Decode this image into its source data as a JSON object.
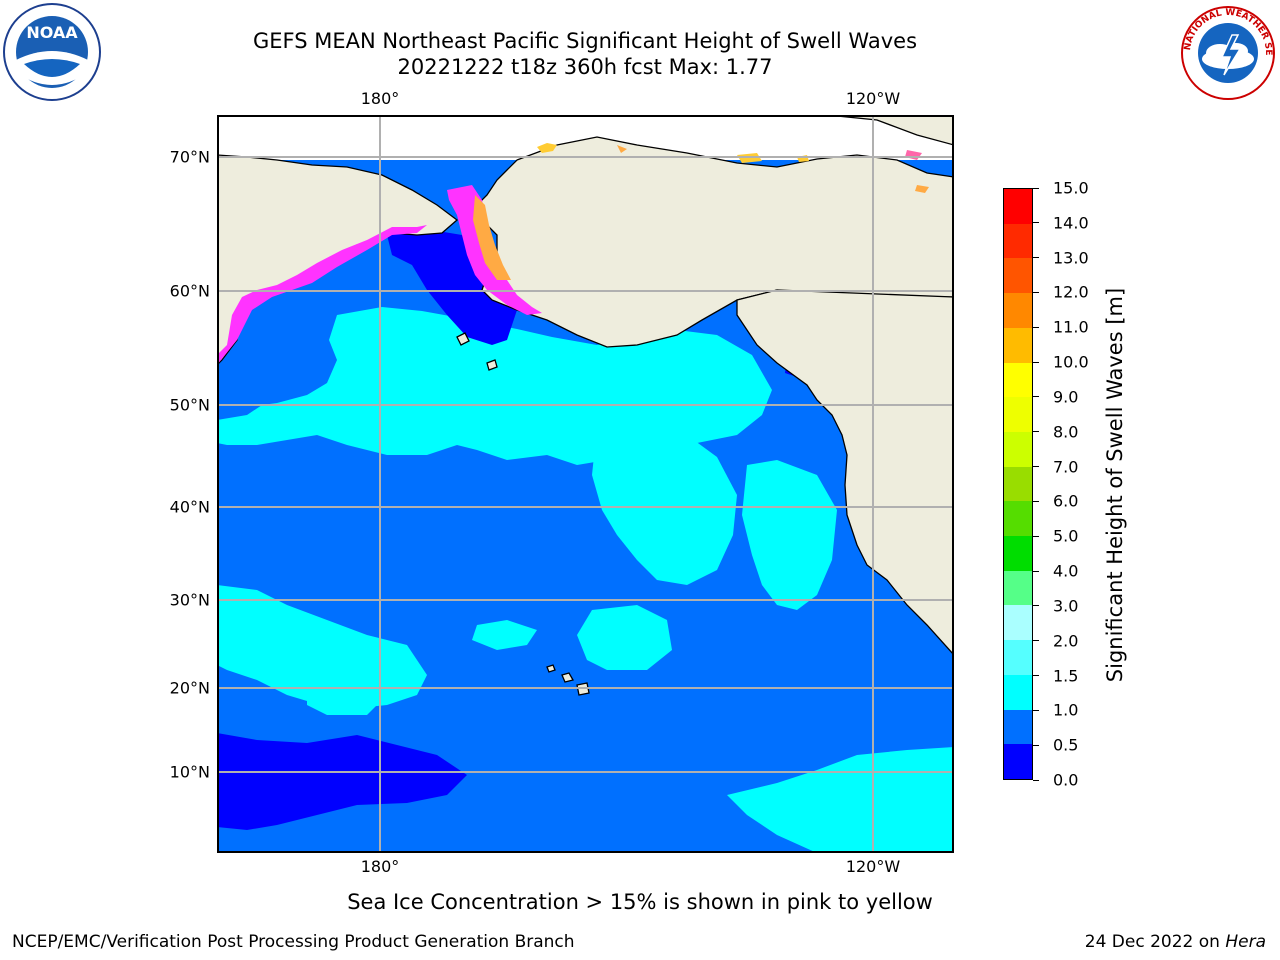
{
  "header": {
    "title_line1": "GEFS MEAN Northeast Pacific Significant Height of Swell Waves",
    "title_line2": "20221222 t18z 360h fcst   Max: 1.77"
  },
  "map": {
    "lon_labels_top": [
      "180°",
      "120°W"
    ],
    "lon_labels_bottom": [
      "180°",
      "120°W"
    ],
    "lat_labels": [
      "70°N",
      "60°N",
      "50°N",
      "40°N",
      "30°N",
      "20°N",
      "10°N"
    ],
    "colors": {
      "land": "#eeeddd",
      "ocean_deep": "#0070ff",
      "ocean_low": "#0000ff",
      "swell_mid": "#00ffff",
      "ice_pink": "#ff33ff",
      "ice_orange": "#ffaa44",
      "grid": "#b0b0b0",
      "coast": "#000000"
    }
  },
  "colorbar": {
    "title": "Significant Height of Swell Waves [m]",
    "tick_labels": [
      "0.0",
      "0.5",
      "1.0",
      "1.5",
      "2.0",
      "3.0",
      "4.0",
      "5.0",
      "6.0",
      "7.0",
      "8.0",
      "9.0",
      "10.0",
      "11.0",
      "12.0",
      "13.0",
      "14.0",
      "15.0"
    ],
    "colors": [
      "#0000ff",
      "#0070ff",
      "#00ffff",
      "#55ffff",
      "#aaffff",
      "#55ff88",
      "#00dd00",
      "#55dd00",
      "#99dd00",
      "#ccff00",
      "#eeff00",
      "#ffff00",
      "#ffbb00",
      "#ff8800",
      "#ff5500",
      "#ff2a00",
      "#ff0000"
    ]
  },
  "note": "Sea Ice Concentration > 15% is shown in pink to yellow",
  "footer": {
    "left": "NCEP/EMC/Verification Post Processing Product Generation Branch",
    "right_prefix": "24 Dec 2022 on ",
    "right_host": "Hera"
  },
  "logos": {
    "noaa_text": "NOAA",
    "nws_text": "NATIONAL WEATHER SERVICE"
  }
}
